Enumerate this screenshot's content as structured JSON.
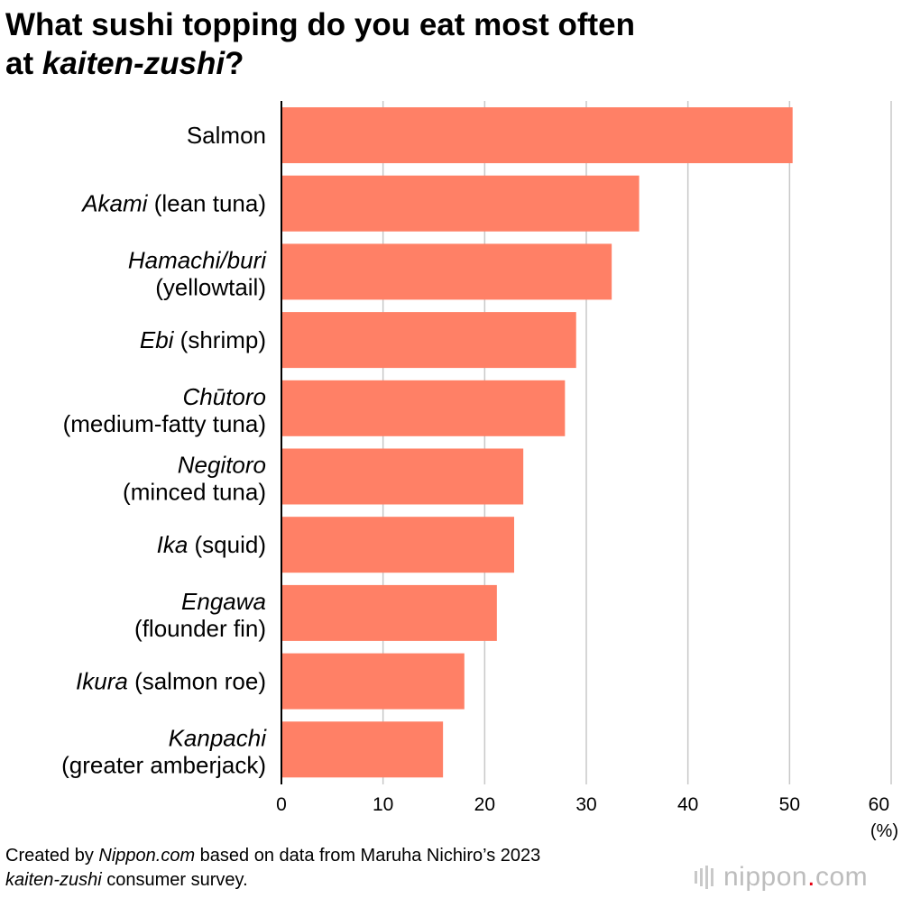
{
  "header": {
    "title_line1": "What sushi topping do you eat most often",
    "title_line2_prefix": "at ",
    "title_line2_italic": "kaiten-zushi",
    "title_line2_suffix": "?"
  },
  "chart_data": {
    "type": "bar",
    "orientation": "horizontal",
    "title": "What sushi topping do you eat most often at kaiten-zushi?",
    "categories": [
      {
        "italic": "",
        "plain": "Salmon",
        "line2": ""
      },
      {
        "italic": "Akami",
        "plain": " (lean tuna)",
        "line2": ""
      },
      {
        "italic": "Hamachi/buri",
        "plain": "",
        "line2": "(yellowtail)"
      },
      {
        "italic": "Ebi",
        "plain": " (shrimp)",
        "line2": ""
      },
      {
        "italic": "Chūtoro",
        "plain": "",
        "line2": "(medium-fatty tuna)"
      },
      {
        "italic": "Negitoro",
        "plain": "",
        "line2": "(minced tuna)"
      },
      {
        "italic": "Ika",
        "plain": " (squid)",
        "line2": ""
      },
      {
        "italic": "Engawa",
        "plain": "",
        "line2": "(flounder fin)"
      },
      {
        "italic": "Ikura",
        "plain": " (salmon roe)",
        "line2": ""
      },
      {
        "italic": "Kanpachi",
        "plain": "",
        "line2": "(greater amberjack)"
      }
    ],
    "values": [
      50.3,
      35.2,
      32.5,
      29.0,
      27.9,
      23.8,
      22.9,
      21.2,
      18.0,
      15.9
    ],
    "xlim": [
      0,
      60
    ],
    "xticks": [
      "0",
      "10",
      "20",
      "30",
      "40",
      "50",
      "60"
    ],
    "xunit": "(%)",
    "grid": true,
    "bar_color": "#ff8066",
    "grid_color": "#c8c8c8"
  },
  "footer": {
    "prefix": "Created by ",
    "source_italic": "Nippon.com",
    "middle": " based on data from Maruha Nichiro’s 2023",
    "line2_italic": "kaiten-zushi",
    "line2_suffix": " consumer survey."
  },
  "logo": {
    "name": "nippon",
    "dot": ".",
    "suffix": "com"
  }
}
